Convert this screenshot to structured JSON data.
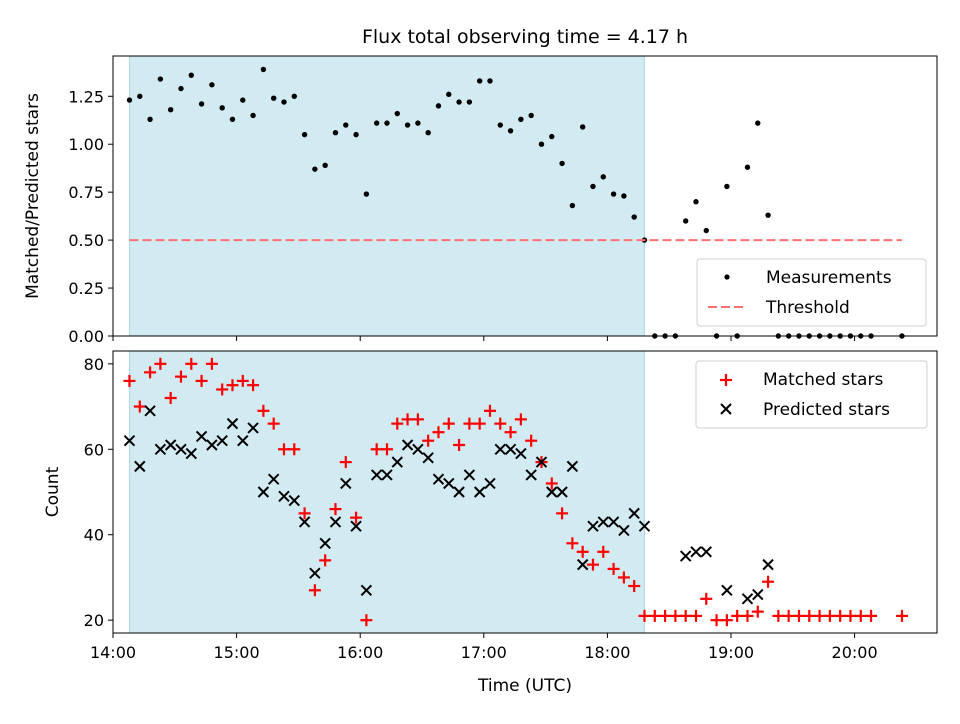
{
  "chart_data": [
    {
      "type": "scatter",
      "title": "Flux total observing time = 4.17 h",
      "xlabel": "",
      "ylabel": "Matched/Predicted stars",
      "xlim": [
        "14:00",
        "20:40"
      ],
      "ylim": [
        0.0,
        1.46
      ],
      "xticks": [
        "14:00",
        "15:00",
        "16:00",
        "17:00",
        "18:00",
        "19:00",
        "20:00"
      ],
      "yticks": [
        "0.00",
        "0.25",
        "0.50",
        "0.75",
        "1.00",
        "1.25"
      ],
      "shaded_region": {
        "x": [
          "14:08",
          "18:18"
        ],
        "color": "#add8e6"
      },
      "legend_position": "lower-right",
      "series": [
        {
          "name": "Measurements",
          "marker": "dot",
          "color": "#000000",
          "x": [
            "14:08",
            "14:13",
            "14:18",
            "14:23",
            "14:28",
            "14:33",
            "14:38",
            "14:43",
            "14:48",
            "14:53",
            "14:58",
            "15:03",
            "15:08",
            "15:13",
            "15:18",
            "15:23",
            "15:28",
            "15:33",
            "15:38",
            "15:43",
            "15:48",
            "15:53",
            "15:58",
            "16:03",
            "16:08",
            "16:13",
            "16:18",
            "16:23",
            "16:28",
            "16:33",
            "16:38",
            "16:43",
            "16:48",
            "16:53",
            "16:58",
            "17:03",
            "17:08",
            "17:13",
            "17:18",
            "17:23",
            "17:28",
            "17:33",
            "17:38",
            "17:43",
            "17:48",
            "17:53",
            "17:58",
            "18:03",
            "18:08",
            "18:13",
            "18:18",
            "18:23",
            "18:28",
            "18:33",
            "18:38",
            "18:43",
            "18:48",
            "18:53",
            "18:58",
            "19:03",
            "19:08",
            "19:13",
            "19:18",
            "19:23",
            "19:28",
            "19:33",
            "19:38",
            "19:43",
            "19:48",
            "19:53",
            "19:58",
            "20:03",
            "20:08",
            "20:23"
          ],
          "y": [
            1.23,
            1.25,
            1.13,
            1.34,
            1.18,
            1.29,
            1.36,
            1.21,
            1.31,
            1.19,
            1.13,
            1.23,
            1.15,
            1.39,
            1.24,
            1.22,
            1.25,
            1.05,
            0.87,
            0.89,
            1.06,
            1.1,
            1.05,
            0.74,
            1.11,
            1.11,
            1.16,
            1.1,
            1.11,
            1.06,
            1.2,
            1.26,
            1.22,
            1.22,
            1.33,
            1.33,
            1.1,
            1.07,
            1.13,
            1.15,
            1.0,
            1.04,
            0.9,
            0.68,
            1.09,
            0.78,
            0.83,
            0.74,
            0.73,
            0.62,
            0.5,
            0.0,
            0.0,
            0.0,
            0.6,
            0.7,
            0.55,
            0.0,
            0.78,
            0.0,
            0.88,
            1.11,
            0.63,
            0.0,
            0.0,
            0.0,
            0.0,
            0.0,
            0.0,
            0.0,
            0.0,
            0.0,
            0.0,
            0.0
          ]
        },
        {
          "name": "Threshold",
          "marker": "dashed-line",
          "color": "#ff7070",
          "x": [
            "14:08",
            "20:23"
          ],
          "y": [
            0.5,
            0.5
          ]
        }
      ]
    },
    {
      "type": "scatter",
      "title": "",
      "xlabel": "Time (UTC)",
      "ylabel": "Count",
      "xlim": [
        "14:00",
        "20:40"
      ],
      "ylim": [
        17,
        83
      ],
      "xticks": [
        "14:00",
        "15:00",
        "16:00",
        "17:00",
        "18:00",
        "19:00",
        "20:00"
      ],
      "yticks": [
        "20",
        "40",
        "60",
        "80"
      ],
      "shaded_region": {
        "x": [
          "14:08",
          "18:18"
        ],
        "color": "#add8e6"
      },
      "legend_position": "top-right",
      "series": [
        {
          "name": "Matched stars",
          "marker": "plus",
          "color": "#ff0000",
          "x": [
            "14:08",
            "14:13",
            "14:18",
            "14:23",
            "14:28",
            "14:33",
            "14:38",
            "14:43",
            "14:48",
            "14:53",
            "14:58",
            "15:03",
            "15:08",
            "15:13",
            "15:18",
            "15:23",
            "15:28",
            "15:33",
            "15:38",
            "15:43",
            "15:48",
            "15:53",
            "15:58",
            "16:03",
            "16:08",
            "16:13",
            "16:18",
            "16:23",
            "16:28",
            "16:33",
            "16:38",
            "16:43",
            "16:48",
            "16:53",
            "16:58",
            "17:03",
            "17:08",
            "17:13",
            "17:18",
            "17:23",
            "17:28",
            "17:33",
            "17:38",
            "17:43",
            "17:48",
            "17:53",
            "17:58",
            "18:03",
            "18:08",
            "18:13",
            "18:18",
            "18:23",
            "18:28",
            "18:33",
            "18:38",
            "18:43",
            "18:48",
            "18:53",
            "18:58",
            "19:03",
            "19:08",
            "19:13",
            "19:18",
            "19:23",
            "19:28",
            "19:33",
            "19:38",
            "19:43",
            "19:48",
            "19:53",
            "19:58",
            "20:03",
            "20:08",
            "20:23"
          ],
          "y": [
            76,
            70,
            78,
            80,
            72,
            77,
            80,
            76,
            80,
            74,
            75,
            76,
            75,
            69,
            66,
            60,
            60,
            45,
            27,
            34,
            46,
            57,
            44,
            20,
            60,
            60,
            66,
            67,
            67,
            62,
            64,
            66,
            61,
            66,
            66,
            69,
            66,
            64,
            67,
            62,
            57,
            52,
            45,
            38,
            36,
            33,
            36,
            32,
            30,
            28,
            21,
            21,
            21,
            21,
            21,
            21,
            25,
            20,
            20,
            21,
            21,
            22,
            29,
            21,
            21,
            21,
            21,
            21,
            21,
            21,
            21,
            21,
            21,
            21
          ]
        },
        {
          "name": "Predicted stars",
          "marker": "x",
          "color": "#000000",
          "x": [
            "14:08",
            "14:13",
            "14:18",
            "14:23",
            "14:28",
            "14:33",
            "14:38",
            "14:43",
            "14:48",
            "14:53",
            "14:58",
            "15:03",
            "15:08",
            "15:13",
            "15:18",
            "15:23",
            "15:28",
            "15:33",
            "15:38",
            "15:43",
            "15:48",
            "15:53",
            "15:58",
            "16:03",
            "16:08",
            "16:13",
            "16:18",
            "16:23",
            "16:28",
            "16:33",
            "16:38",
            "16:43",
            "16:48",
            "16:53",
            "16:58",
            "17:03",
            "17:08",
            "17:13",
            "17:18",
            "17:23",
            "17:28",
            "17:33",
            "17:38",
            "17:43",
            "17:48",
            "17:53",
            "17:58",
            "18:03",
            "18:08",
            "18:13",
            "18:18",
            "18:38",
            "18:43",
            "18:48",
            "18:58",
            "19:08",
            "19:13",
            "19:18"
          ],
          "y": [
            62,
            56,
            69,
            60,
            61,
            60,
            59,
            63,
            61,
            62,
            66,
            62,
            65,
            50,
            53,
            49,
            48,
            43,
            31,
            38,
            43,
            52,
            42,
            27,
            54,
            54,
            57,
            61,
            60,
            58,
            53,
            52,
            50,
            54,
            50,
            52,
            60,
            60,
            59,
            54,
            57,
            50,
            50,
            56,
            33,
            42,
            43,
            43,
            41,
            45,
            42,
            35,
            36,
            36,
            27,
            25,
            26,
            33
          ]
        }
      ]
    }
  ]
}
